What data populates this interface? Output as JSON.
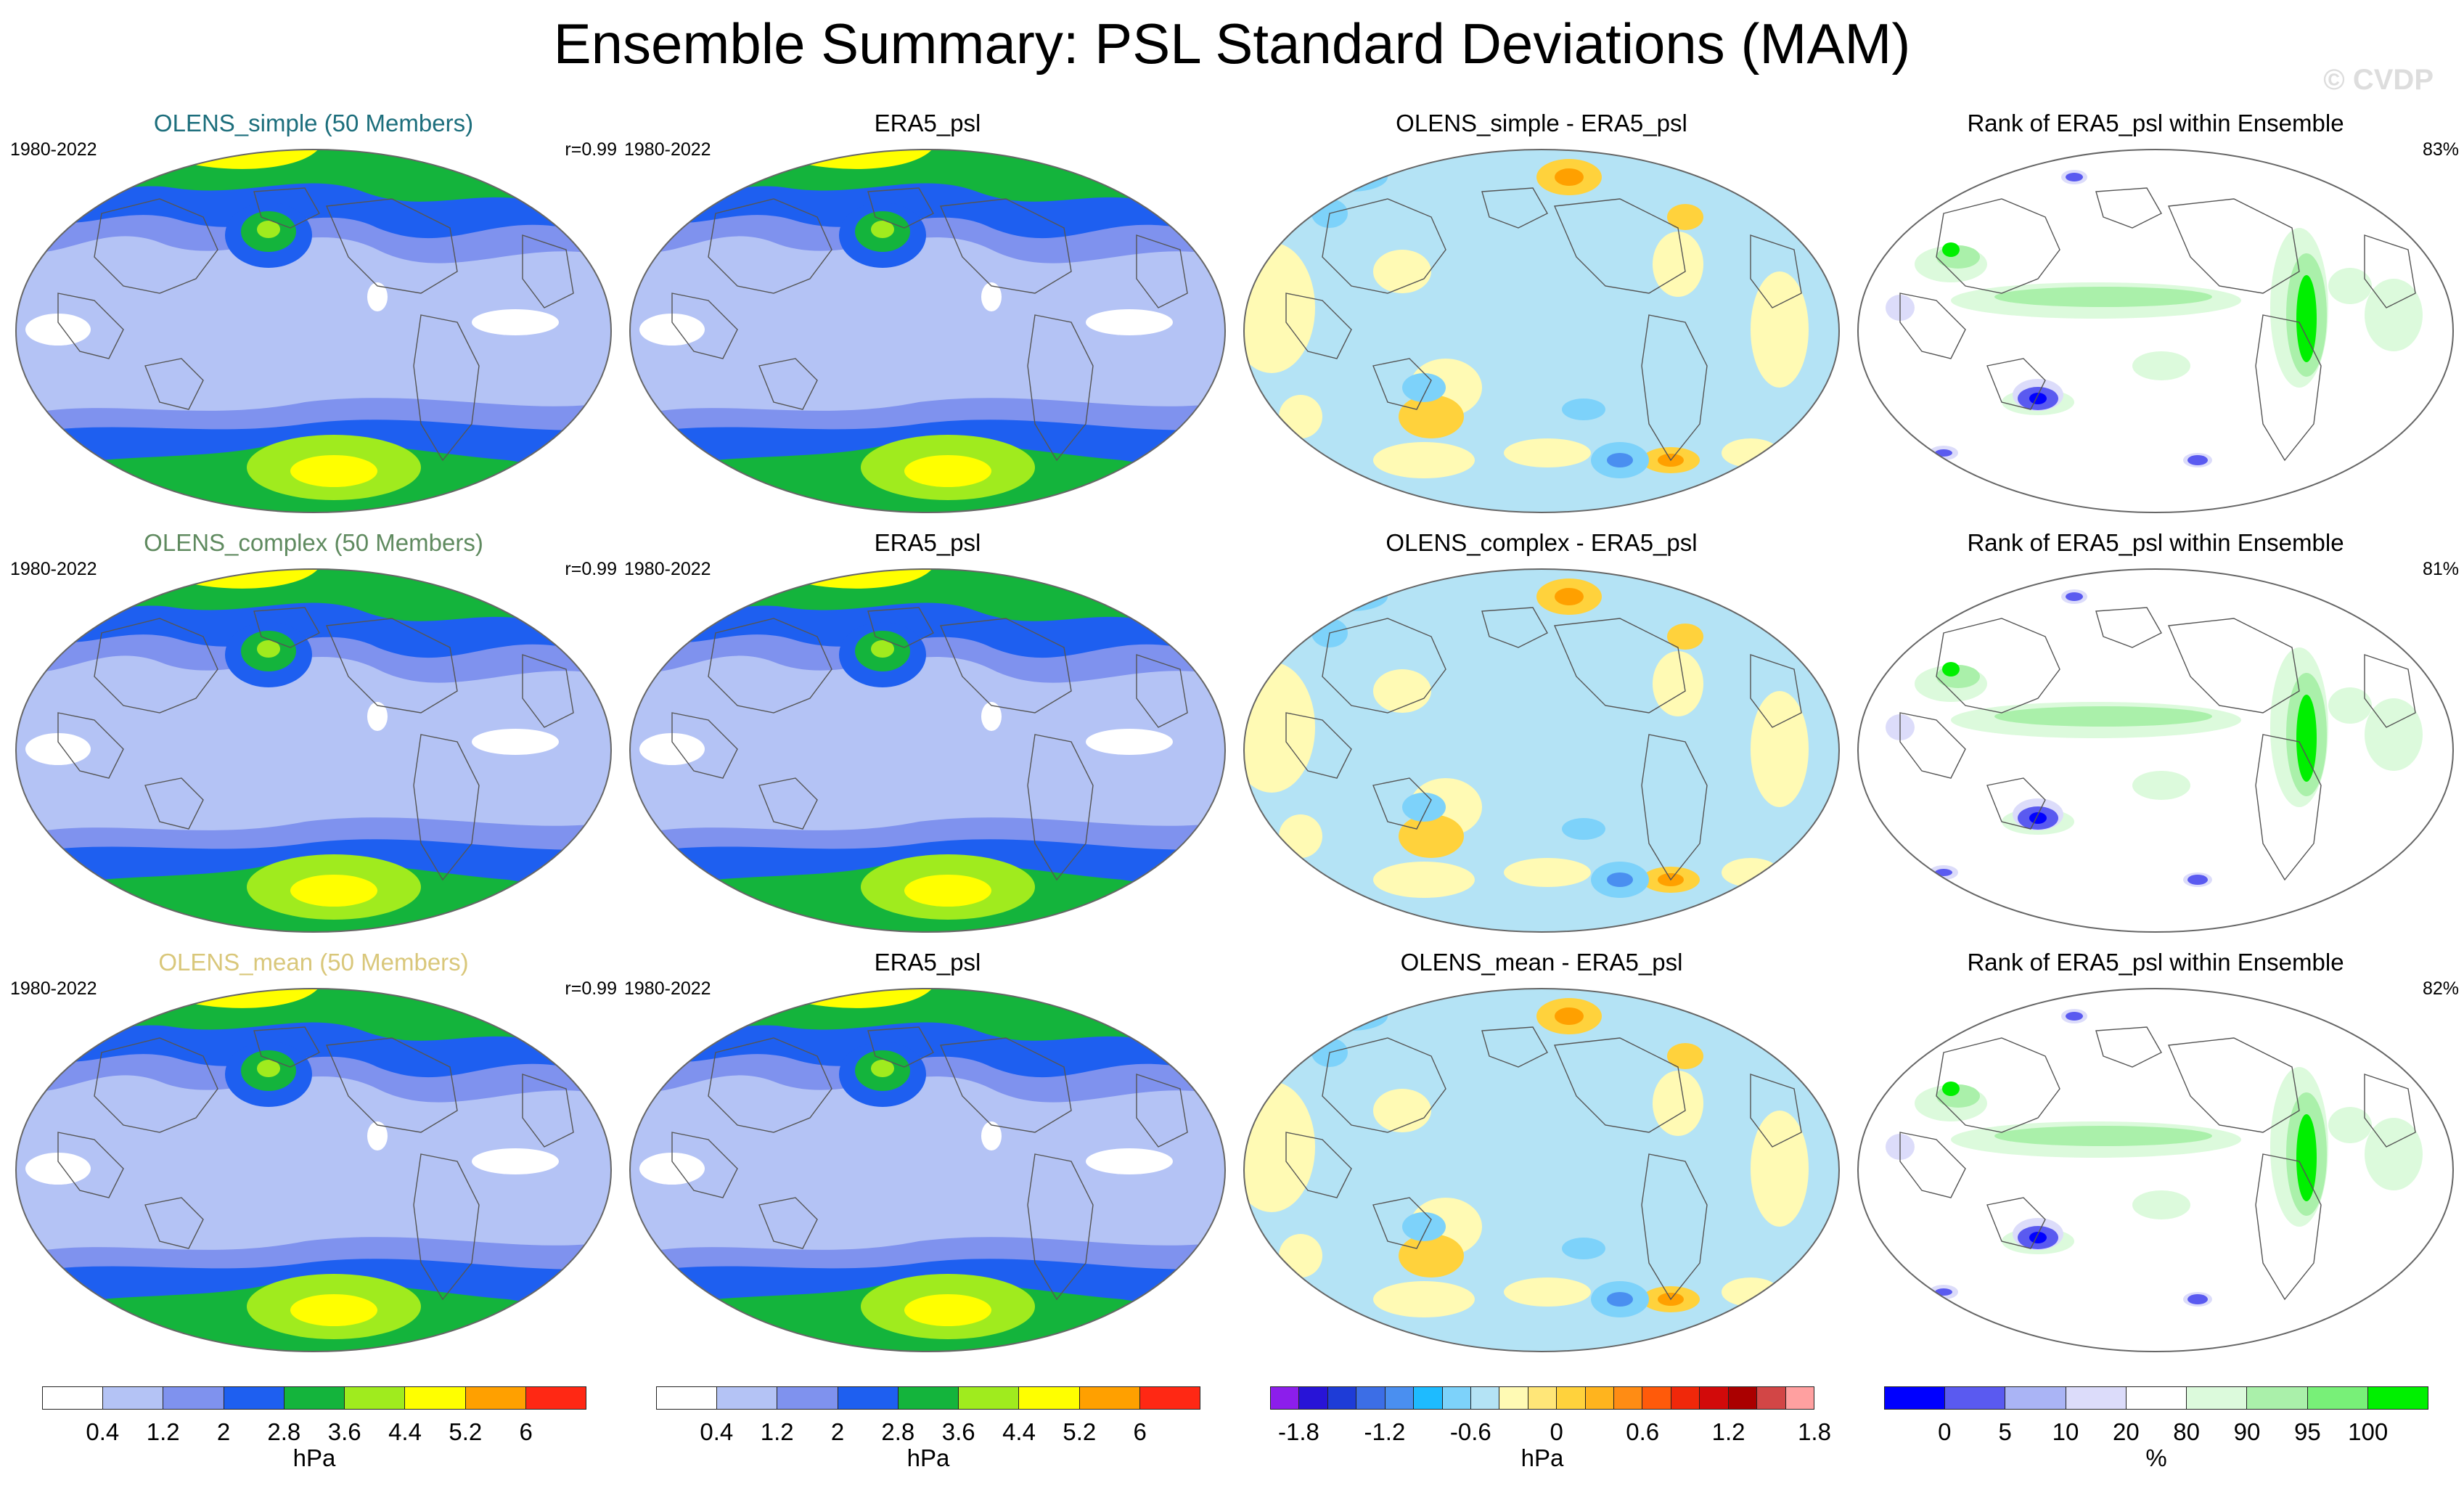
{
  "figure": {
    "title": "Ensemble Summary: PSL Standard Deviations (MAM)",
    "watermark": "© CVDP"
  },
  "chart_data": {
    "type": "heatmap",
    "rows": [
      {
        "panels": [
          {
            "kind": "sd",
            "title": "OLENS_simple (50 Members)",
            "title_color": "#1c6e7c",
            "period": "1980-2022",
            "stat": "r=0.99"
          },
          {
            "kind": "sd",
            "title": "ERA5_psl",
            "title_color": "#000000",
            "period": "1980-2022",
            "stat": ""
          },
          {
            "kind": "diff",
            "title": "OLENS_simple - ERA5_psl",
            "title_color": "#000000",
            "period": "",
            "stat": ""
          },
          {
            "kind": "rank",
            "title": "Rank of ERA5_psl within Ensemble",
            "title_color": "#000000",
            "period": "",
            "stat": "83%"
          }
        ]
      },
      {
        "panels": [
          {
            "kind": "sd",
            "title": "OLENS_complex (50 Members)",
            "title_color": "#5f8a5f",
            "period": "1980-2022",
            "stat": "r=0.99"
          },
          {
            "kind": "sd",
            "title": "ERA5_psl",
            "title_color": "#000000",
            "period": "1980-2022",
            "stat": ""
          },
          {
            "kind": "diff",
            "title": "OLENS_complex - ERA5_psl",
            "title_color": "#000000",
            "period": "",
            "stat": ""
          },
          {
            "kind": "rank",
            "title": "Rank of ERA5_psl within Ensemble",
            "title_color": "#000000",
            "period": "",
            "stat": "81%"
          }
        ]
      },
      {
        "panels": [
          {
            "kind": "sd",
            "title": "OLENS_mean (50 Members)",
            "title_color": "#d9c77a",
            "period": "1980-2022",
            "stat": "r=0.99"
          },
          {
            "kind": "sd",
            "title": "ERA5_psl",
            "title_color": "#000000",
            "period": "1980-2022",
            "stat": ""
          },
          {
            "kind": "diff",
            "title": "OLENS_mean - ERA5_psl",
            "title_color": "#000000",
            "period": "",
            "stat": ""
          },
          {
            "kind": "rank",
            "title": "Rank of ERA5_psl within Ensemble",
            "title_color": "#000000",
            "period": "",
            "stat": "82%"
          }
        ]
      }
    ],
    "colorbars": [
      {
        "units": "hPa",
        "colors": [
          "#ffffff",
          "#b4c3f5",
          "#7f92ee",
          "#1e5ff0",
          "#14b43c",
          "#a0eb1e",
          "#ffff00",
          "#ffa000",
          "#ff2814"
        ],
        "ticks": [
          "0.4",
          "1.2",
          "2",
          "2.8",
          "3.6",
          "4.4",
          "5.2",
          "6"
        ]
      },
      {
        "units": "hPa",
        "colors": [
          "#ffffff",
          "#b4c3f5",
          "#7f92ee",
          "#1e5ff0",
          "#14b43c",
          "#a0eb1e",
          "#ffff00",
          "#ffa000",
          "#ff2814"
        ],
        "ticks": [
          "0.4",
          "1.2",
          "2",
          "2.8",
          "3.6",
          "4.4",
          "5.2",
          "6"
        ]
      },
      {
        "units": "hPa",
        "colors": [
          "#8c1eeb",
          "#2814d7",
          "#1e3cd7",
          "#3c6ee6",
          "#4a8ff0",
          "#1ebbff",
          "#7dd2fa",
          "#b4e3f5",
          "#fffab4",
          "#ffe678",
          "#ffd23c",
          "#ffb41e",
          "#ff8c14",
          "#ff5a0a",
          "#f0280a",
          "#d20a0a",
          "#aa0000",
          "#d24646",
          "#ffa0a0"
        ],
        "ticks": [
          "-1.8",
          "-1.2",
          "-0.6",
          "0",
          "0.6",
          "1.2",
          "1.8"
        ]
      },
      {
        "units": "%",
        "colors": [
          "#0000ff",
          "#5a5af0",
          "#aab4f5",
          "#dcdcfa",
          "#ffffff",
          "#dcfadc",
          "#aaf0aa",
          "#78f078",
          "#00f000"
        ],
        "ticks": [
          "0",
          "5",
          "10",
          "20",
          "80",
          "90",
          "95",
          "100"
        ]
      }
    ]
  }
}
